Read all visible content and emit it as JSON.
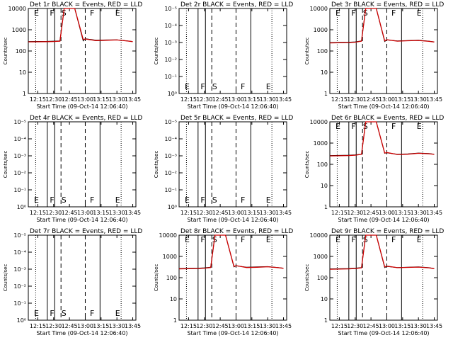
{
  "common": {
    "title_suffix": "BLACK = Events, RED = LLD",
    "xlabel": "Start Time (09-Oct-14 12:06:40)",
    "ylabel": "Counts/sec",
    "x_ticks": [
      "12:15",
      "12:30",
      "12:45",
      "13:00",
      "13:15",
      "13:30",
      "13:45"
    ],
    "y_ticks_log": [
      "1",
      "10",
      "100",
      "1000",
      "10000"
    ],
    "y_ticks_exp": [
      "10⁰",
      "10⁻¹",
      "10⁻²",
      "10⁻³",
      "10⁻⁴",
      "10⁻⁵"
    ],
    "interval_markers": [
      "E",
      "F",
      "S",
      "F",
      "E"
    ],
    "colors": {
      "events": "#000000",
      "lld": "#cc0000",
      "axis": "#000000"
    }
  },
  "chart_data": [
    {
      "type": "line",
      "det": "Det 1r",
      "scale": "log",
      "ylim": [
        1,
        10000
      ],
      "has_data": true,
      "series": [
        {
          "name": "BLACK = Events",
          "x": [
            "12:06",
            "12:24",
            "12:30",
            "12:36",
            "12:40",
            "12:50",
            "12:58",
            "13:00",
            "13:10",
            "13:20",
            "13:30",
            "13:40",
            "13:45"
          ],
          "values": [
            280,
            285,
            290,
            300,
            10000,
            10000,
            300,
            380,
            320,
            330,
            335,
            300,
            280
          ]
        },
        {
          "name": "RED = LLD",
          "x": [
            "12:06",
            "12:24",
            "12:30",
            "12:36",
            "12:40",
            "12:50",
            "12:58",
            "13:00",
            "13:10",
            "13:20",
            "13:30",
            "13:40",
            "13:45"
          ],
          "values": [
            270,
            275,
            280,
            290,
            10000,
            10000,
            350,
            370,
            310,
            320,
            330,
            295,
            275
          ]
        }
      ]
    },
    {
      "type": "line",
      "det": "Det 2r",
      "scale": "exp",
      "has_data": false,
      "series": []
    },
    {
      "type": "line",
      "det": "Det 3r",
      "scale": "log",
      "ylim": [
        1,
        10000
      ],
      "has_data": true,
      "series": [
        {
          "name": "BLACK = Events",
          "x": [
            "12:06",
            "12:24",
            "12:30",
            "12:36",
            "12:40",
            "12:50",
            "12:58",
            "13:00",
            "13:10",
            "13:20",
            "13:30",
            "13:40",
            "13:45"
          ],
          "values": [
            250,
            260,
            270,
            300,
            10000,
            10000,
            280,
            330,
            300,
            310,
            320,
            290,
            270
          ]
        },
        {
          "name": "RED = LLD",
          "x": [
            "12:06",
            "12:24",
            "12:30",
            "12:36",
            "12:40",
            "12:50",
            "12:58",
            "13:00",
            "13:10",
            "13:20",
            "13:30",
            "13:40",
            "13:45"
          ],
          "values": [
            240,
            250,
            260,
            290,
            10000,
            10000,
            300,
            340,
            290,
            305,
            315,
            285,
            265
          ]
        }
      ]
    },
    {
      "type": "line",
      "det": "Det 4r",
      "scale": "exp",
      "has_data": false,
      "series": []
    },
    {
      "type": "line",
      "det": "Det 5r",
      "scale": "exp",
      "has_data": false,
      "series": []
    },
    {
      "type": "line",
      "det": "Det 6r",
      "scale": "log",
      "ylim": [
        1,
        10000
      ],
      "has_data": true,
      "series": [
        {
          "name": "BLACK = Events",
          "x": [
            "12:06",
            "12:24",
            "12:30",
            "12:36",
            "12:40",
            "12:50",
            "12:58",
            "13:00",
            "13:10",
            "13:20",
            "13:30",
            "13:40",
            "13:45"
          ],
          "values": [
            260,
            270,
            280,
            300,
            10000,
            10000,
            330,
            350,
            300,
            310,
            340,
            320,
            300
          ]
        },
        {
          "name": "RED = LLD",
          "x": [
            "12:06",
            "12:24",
            "12:30",
            "12:36",
            "12:40",
            "12:50",
            "12:58",
            "13:00",
            "13:10",
            "13:20",
            "13:30",
            "13:40",
            "13:45"
          ],
          "values": [
            250,
            260,
            270,
            295,
            10000,
            10000,
            340,
            360,
            290,
            300,
            330,
            315,
            295
          ]
        }
      ]
    },
    {
      "type": "line",
      "det": "Det 7r",
      "scale": "exp",
      "has_data": false,
      "series": []
    },
    {
      "type": "line",
      "det": "Det 8r",
      "scale": "log",
      "ylim": [
        1,
        10000
      ],
      "has_data": true,
      "series": [
        {
          "name": "BLACK = Events",
          "x": [
            "12:06",
            "12:24",
            "12:30",
            "12:36",
            "12:40",
            "12:50",
            "12:58",
            "13:00",
            "13:10",
            "13:20",
            "13:30",
            "13:40",
            "13:45"
          ],
          "values": [
            270,
            280,
            290,
            310,
            10000,
            10000,
            320,
            360,
            310,
            320,
            330,
            300,
            280
          ]
        },
        {
          "name": "RED = LLD",
          "x": [
            "12:06",
            "12:24",
            "12:30",
            "12:36",
            "12:40",
            "12:50",
            "12:58",
            "13:00",
            "13:10",
            "13:20",
            "13:30",
            "13:40",
            "13:45"
          ],
          "values": [
            260,
            270,
            280,
            300,
            10000,
            10000,
            340,
            370,
            300,
            310,
            325,
            295,
            275
          ]
        }
      ]
    },
    {
      "type": "line",
      "det": "Det 9r",
      "scale": "log",
      "ylim": [
        1,
        10000
      ],
      "has_data": true,
      "series": [
        {
          "name": "BLACK = Events",
          "x": [
            "12:06",
            "12:24",
            "12:30",
            "12:36",
            "12:40",
            "12:50",
            "12:58",
            "13:00",
            "13:10",
            "13:20",
            "13:30",
            "13:40",
            "13:45"
          ],
          "values": [
            260,
            270,
            280,
            300,
            10000,
            10000,
            300,
            340,
            300,
            310,
            320,
            295,
            270
          ]
        },
        {
          "name": "RED = LLD",
          "x": [
            "12:06",
            "12:24",
            "12:30",
            "12:36",
            "12:40",
            "12:50",
            "12:58",
            "13:00",
            "13:10",
            "13:20",
            "13:30",
            "13:40",
            "13:45"
          ],
          "values": [
            250,
            260,
            270,
            290,
            10000,
            10000,
            320,
            350,
            295,
            305,
            315,
            290,
            265
          ]
        }
      ]
    }
  ]
}
